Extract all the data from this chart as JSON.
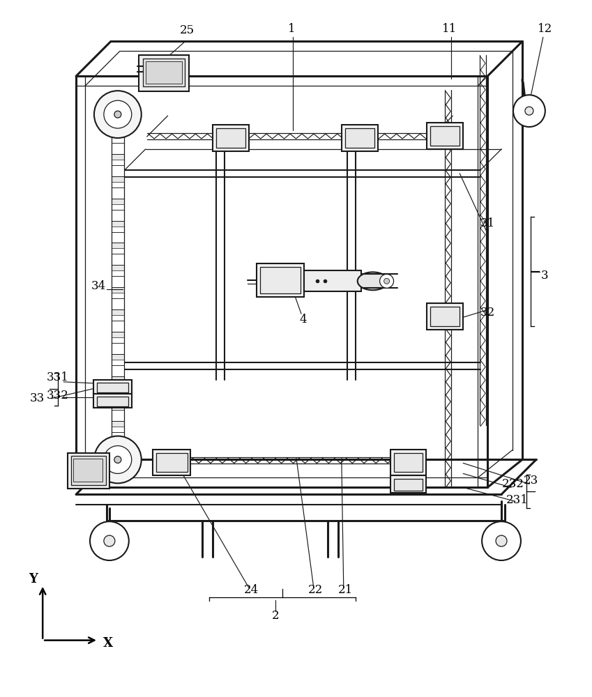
{
  "figure_width": 8.49,
  "figure_height": 10.0,
  "bg_color": "#ffffff",
  "line_color": "#1a1a1a",
  "label_color": "#000000"
}
